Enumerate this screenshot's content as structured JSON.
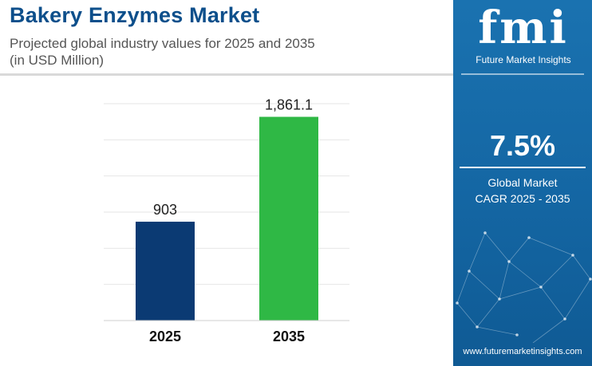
{
  "header": {
    "title": "Bakery Enzymes Market",
    "subtitle_line1": "Projected global industry values for 2025 and 2035",
    "subtitle_line2": "(in USD Million)"
  },
  "sidebar": {
    "logo_text": "fmi",
    "logo_tagline": "Future Market Insights",
    "cagr_value": "7.5%",
    "cagr_label_line1": "Global Market",
    "cagr_label_line2": "CAGR 2025 - 2035",
    "website": "www.futuremarketinsights.com",
    "background_color": "#1466a3"
  },
  "chart_data": {
    "type": "bar",
    "categories": [
      "2025",
      "2035"
    ],
    "values": [
      903,
      1861.1
    ],
    "value_labels": [
      "903",
      "1,861.1"
    ],
    "bar_colors": [
      "#0b3a73",
      "#2fb845"
    ],
    "ylim": [
      0,
      2200
    ],
    "grid": true,
    "xlabel": "",
    "ylabel": ""
  }
}
